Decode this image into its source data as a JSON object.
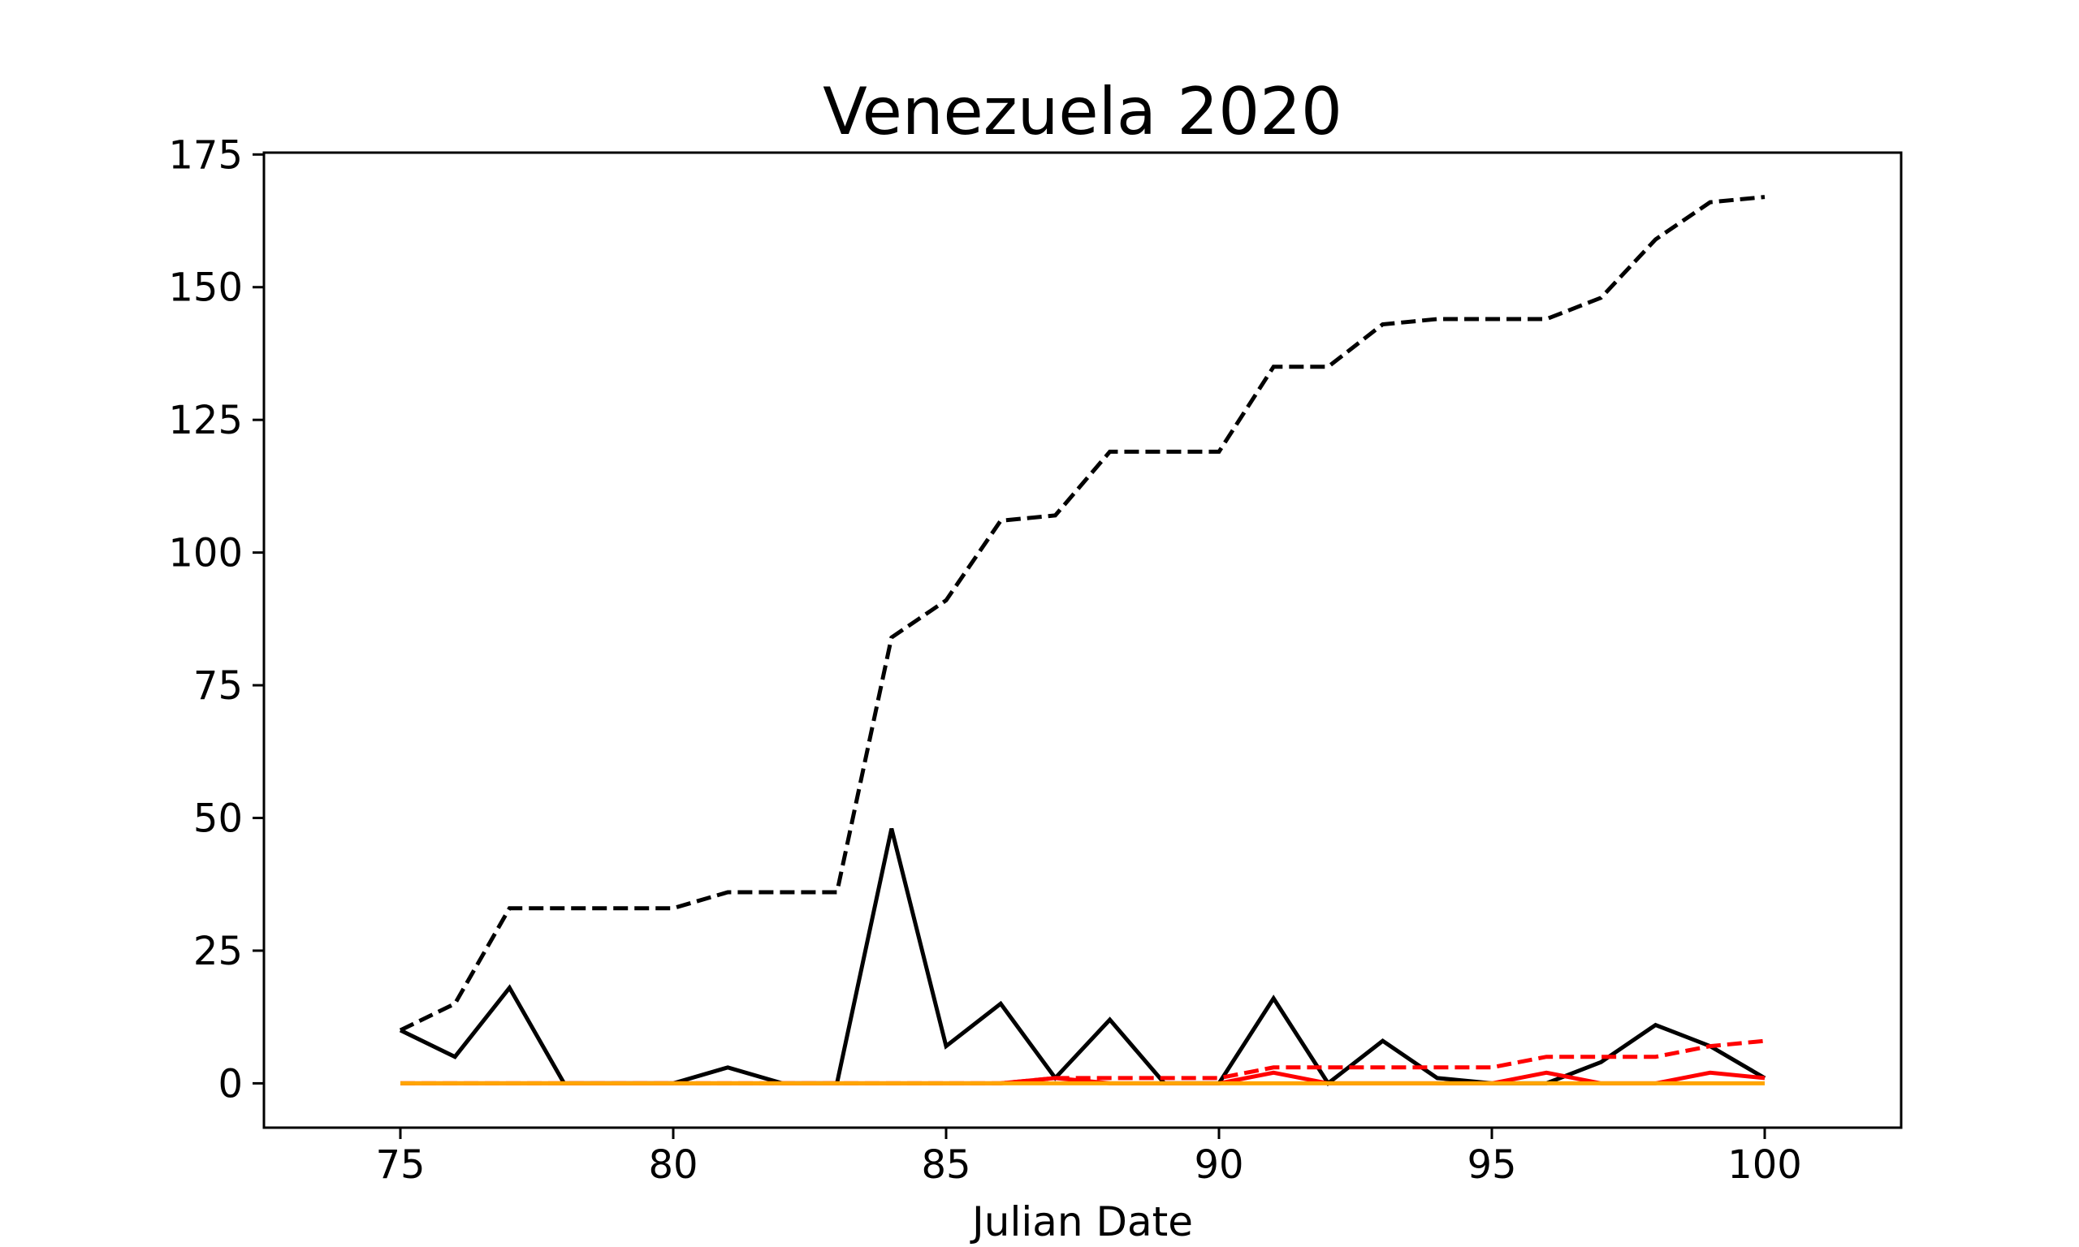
{
  "chart_data": {
    "type": "line",
    "title": "Venezuela 2020",
    "xlabel": "Julian Date",
    "ylabel": "",
    "xlim": [
      72.5,
      102.5
    ],
    "ylim": [
      -8.35,
      175.35
    ],
    "xticks": [
      75,
      80,
      85,
      90,
      95,
      100
    ],
    "yticks": [
      0,
      25,
      50,
      75,
      100,
      125,
      150,
      175
    ],
    "grid": false,
    "legend": "none",
    "x": [
      75,
      76,
      77,
      78,
      79,
      80,
      81,
      82,
      83,
      84,
      85,
      86,
      87,
      88,
      89,
      90,
      91,
      92,
      93,
      94,
      95,
      96,
      97,
      98,
      99,
      100
    ],
    "series": [
      {
        "color": "#000000",
        "style": "dashed",
        "values": [
          10,
          15,
          33,
          33,
          33,
          33,
          36,
          36,
          36,
          84,
          91,
          106,
          107,
          119,
          119,
          119,
          135,
          135,
          143,
          144,
          144,
          144,
          148,
          159,
          166,
          167
        ]
      },
      {
        "color": "#000000",
        "style": "solid",
        "values": [
          10,
          5,
          18,
          0,
          0,
          0,
          3,
          0,
          0,
          48,
          7,
          15,
          1,
          12,
          0,
          0,
          16,
          0,
          8,
          1,
          0,
          0,
          4,
          11,
          7,
          1
        ]
      },
      {
        "color": "#ff0000",
        "style": "dashed",
        "values": [
          0,
          0,
          0,
          0,
          0,
          0,
          0,
          0,
          0,
          0,
          0,
          0,
          1,
          1,
          1,
          1,
          3,
          3,
          3,
          3,
          3,
          5,
          5,
          5,
          7,
          8
        ]
      },
      {
        "color": "#ff0000",
        "style": "solid",
        "values": [
          0,
          0,
          0,
          0,
          0,
          0,
          0,
          0,
          0,
          0,
          0,
          0,
          1,
          0,
          0,
          0,
          2,
          0,
          0,
          0,
          0,
          2,
          0,
          0,
          2,
          1
        ]
      },
      {
        "color": "#ffa500",
        "style": "solid",
        "values": [
          0,
          0,
          0,
          0,
          0,
          0,
          0,
          0,
          0,
          0,
          0,
          0,
          0,
          0,
          0,
          0,
          0,
          0,
          0,
          0,
          0,
          0,
          0,
          0,
          0,
          0
        ]
      }
    ]
  }
}
